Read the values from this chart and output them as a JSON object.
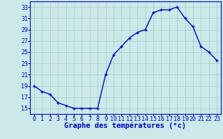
{
  "x": [
    0,
    1,
    2,
    3,
    4,
    5,
    6,
    7,
    8,
    9,
    10,
    11,
    12,
    13,
    14,
    15,
    16,
    17,
    18,
    19,
    20,
    21,
    22,
    23
  ],
  "y": [
    19,
    18,
    17.5,
    16,
    15.5,
    15,
    15,
    15,
    15,
    21,
    24.5,
    26,
    27.5,
    28.5,
    29,
    32,
    32.5,
    32.5,
    33,
    31,
    29.5,
    26,
    25,
    23.5
  ],
  "line_color": "#0000cc",
  "marker": "+",
  "marker_size": 3.5,
  "marker_linewidth": 1.0,
  "background_color": "#cce8e8",
  "grid_color": "#aac8c8",
  "xlabel": "Graphe des températures (°c)",
  "xlabel_color": "#0000cc",
  "xlabel_fontsize": 7.5,
  "tick_color": "#0000cc",
  "tick_fontsize": 6,
  "ylim": [
    14,
    34
  ],
  "yticks": [
    15,
    17,
    19,
    21,
    23,
    25,
    27,
    29,
    31,
    33
  ],
  "xtick_labels": [
    "0",
    "1",
    "2",
    "3",
    "4",
    "5",
    "6",
    "7",
    "8",
    "9",
    "10",
    "11",
    "12",
    "13",
    "14",
    "15",
    "16",
    "17",
    "18",
    "19",
    "20",
    "21",
    "22",
    "23"
  ],
  "spine_color": "#0000cc",
  "axis_bg": "#cce8e8",
  "line_width": 1.0
}
